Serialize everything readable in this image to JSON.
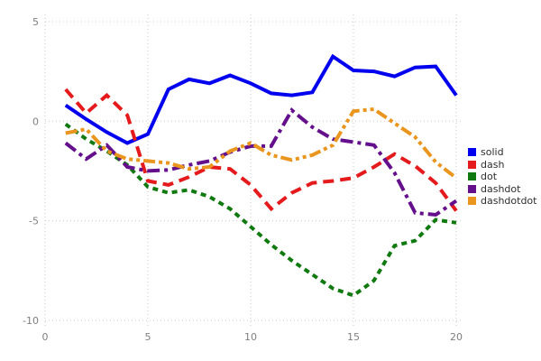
{
  "chart_data": {
    "type": "line",
    "title": "",
    "xlabel": "",
    "ylabel": "",
    "grid": true,
    "grid_style": "dotted",
    "grid_color": "#c9c9c9",
    "tick_label_color": "#7f7f7f",
    "background_color": "#ffffff",
    "xlim": [
      0,
      20.35
    ],
    "ylim": [
      -10.32,
      5.36
    ],
    "x_ticks": [
      0,
      5,
      10,
      15,
      20
    ],
    "y_ticks": [
      5,
      0,
      -5,
      -10
    ],
    "x": [
      1,
      2,
      3,
      4,
      5,
      6,
      7,
      8,
      9,
      10,
      11,
      12,
      13,
      14,
      15,
      16,
      17,
      18,
      19,
      20
    ],
    "series": [
      {
        "name": "solid",
        "color": "#0000ee",
        "dash": "solid",
        "values": [
          0.8,
          0.1,
          -0.55,
          -1.1,
          -0.65,
          1.6,
          2.1,
          1.9,
          2.3,
          1.9,
          1.4,
          1.3,
          1.45,
          3.25,
          2.55,
          2.5,
          2.25,
          2.7,
          2.75,
          1.3
        ]
      },
      {
        "name": "dash",
        "color": "#e41a1c",
        "dash": "dash",
        "values": [
          1.6,
          0.4,
          1.3,
          0.3,
          -3.0,
          -3.2,
          -2.8,
          -2.3,
          -2.4,
          -3.2,
          -4.4,
          -3.6,
          -3.1,
          -3.0,
          -2.85,
          -2.3,
          -1.65,
          -2.25,
          -3.1,
          -4.5
        ]
      },
      {
        "name": "dot",
        "color": "#107a10",
        "dash": "dot",
        "values": [
          -0.15,
          -0.9,
          -1.5,
          -2.2,
          -3.3,
          -3.6,
          -3.45,
          -3.8,
          -4.4,
          -5.3,
          -6.2,
          -7.0,
          -7.7,
          -8.4,
          -8.75,
          -8.0,
          -6.25,
          -6.0,
          -4.95,
          -5.1
        ]
      },
      {
        "name": "dashdot",
        "color": "#64108c",
        "dash": "dashdot",
        "values": [
          -1.1,
          -1.9,
          -1.2,
          -2.3,
          -2.5,
          -2.45,
          -2.2,
          -2.0,
          -1.55,
          -1.25,
          -1.25,
          0.55,
          -0.3,
          -0.9,
          -1.05,
          -1.2,
          -2.6,
          -4.6,
          -4.7,
          -4.0
        ]
      },
      {
        "name": "dashdotdot",
        "color": "#ea951d",
        "dash": "dashdotdot",
        "values": [
          -0.6,
          -0.4,
          -1.5,
          -1.9,
          -2.0,
          -2.1,
          -2.4,
          -2.3,
          -1.5,
          -1.1,
          -1.7,
          -1.95,
          -1.7,
          -1.2,
          0.5,
          0.6,
          -0.1,
          -0.8,
          -2.05,
          -2.85
        ]
      }
    ],
    "legend": {
      "position": "right",
      "items": [
        "solid",
        "dash",
        "dot",
        "dashdot",
        "dashdotdot"
      ]
    }
  }
}
